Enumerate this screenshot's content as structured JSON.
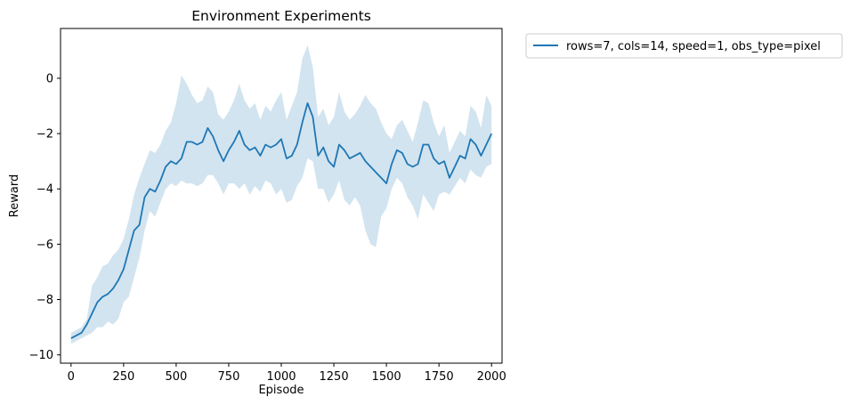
{
  "chart_data": {
    "type": "line",
    "title": "Environment Experiments",
    "xlabel": "Episode",
    "ylabel": "Reward",
    "xlim": [
      -50,
      2050
    ],
    "ylim": [
      -10.3,
      1.8
    ],
    "x_ticks": [
      0,
      250,
      500,
      750,
      1000,
      1250,
      1500,
      1750,
      2000
    ],
    "y_ticks": [
      -10,
      -8,
      -6,
      -4,
      -2,
      0
    ],
    "grid": false,
    "legend_position": "outside-top-right",
    "colors": {
      "line": "#1f77b4",
      "band": "#1f77b4"
    },
    "series": [
      {
        "name": "rows=7, cols=14, speed=1, obs_type=pixel",
        "x": [
          0,
          25,
          50,
          75,
          100,
          125,
          150,
          175,
          200,
          225,
          250,
          275,
          300,
          325,
          350,
          375,
          400,
          425,
          450,
          475,
          500,
          525,
          550,
          575,
          600,
          625,
          650,
          675,
          700,
          725,
          750,
          775,
          800,
          825,
          850,
          875,
          900,
          925,
          950,
          975,
          1000,
          1025,
          1050,
          1075,
          1100,
          1125,
          1150,
          1175,
          1200,
          1225,
          1250,
          1275,
          1300,
          1325,
          1350,
          1375,
          1400,
          1425,
          1450,
          1475,
          1500,
          1525,
          1550,
          1575,
          1600,
          1625,
          1650,
          1675,
          1700,
          1725,
          1750,
          1775,
          1800,
          1825,
          1850,
          1875,
          1900,
          1925,
          1950,
          1975,
          2000
        ],
        "y": [
          -9.4,
          -9.3,
          -9.2,
          -8.9,
          -8.5,
          -8.1,
          -7.9,
          -7.8,
          -7.6,
          -7.3,
          -6.9,
          -6.2,
          -5.5,
          -5.3,
          -4.3,
          -4.0,
          -4.1,
          -3.7,
          -3.2,
          -3.0,
          -3.1,
          -2.9,
          -2.3,
          -2.3,
          -2.4,
          -2.3,
          -1.8,
          -2.1,
          -2.6,
          -3.0,
          -2.6,
          -2.3,
          -1.9,
          -2.4,
          -2.6,
          -2.5,
          -2.8,
          -2.4,
          -2.5,
          -2.4,
          -2.2,
          -2.9,
          -2.8,
          -2.4,
          -1.6,
          -0.9,
          -1.4,
          -2.8,
          -2.5,
          -3.0,
          -3.2,
          -2.4,
          -2.6,
          -2.9,
          -2.8,
          -2.7,
          -3.0,
          -3.2,
          -3.4,
          -3.6,
          -3.8,
          -3.1,
          -2.6,
          -2.7,
          -3.1,
          -3.2,
          -3.1,
          -2.4,
          -2.4,
          -2.9,
          -3.1,
          -3.0,
          -3.6,
          -3.2,
          -2.8,
          -2.9,
          -2.2,
          -2.4,
          -2.8,
          -2.4,
          -2.0
        ],
        "lower": [
          -9.6,
          -9.5,
          -9.4,
          -9.3,
          -9.2,
          -9.0,
          -9.0,
          -8.8,
          -8.9,
          -8.7,
          -8.1,
          -7.9,
          -7.2,
          -6.5,
          -5.5,
          -4.8,
          -5.0,
          -4.5,
          -4.0,
          -3.8,
          -3.9,
          -3.7,
          -3.8,
          -3.8,
          -3.9,
          -3.8,
          -3.5,
          -3.5,
          -3.8,
          -4.2,
          -3.8,
          -3.8,
          -4.0,
          -3.8,
          -4.2,
          -3.9,
          -4.1,
          -3.7,
          -3.8,
          -4.2,
          -4.0,
          -4.5,
          -4.4,
          -3.9,
          -3.6,
          -2.9,
          -3.0,
          -4.0,
          -4.0,
          -4.5,
          -4.2,
          -3.7,
          -4.4,
          -4.6,
          -4.3,
          -4.6,
          -5.5,
          -6.0,
          -6.1,
          -5.0,
          -4.7,
          -4.0,
          -3.6,
          -3.8,
          -4.3,
          -4.6,
          -5.1,
          -4.2,
          -4.5,
          -4.8,
          -4.2,
          -4.1,
          -4.2,
          -3.9,
          -3.6,
          -3.8,
          -3.3,
          -3.5,
          -3.6,
          -3.2,
          -3.1
        ],
        "upper": [
          -9.2,
          -9.1,
          -9.0,
          -8.7,
          -7.5,
          -7.2,
          -6.8,
          -6.7,
          -6.4,
          -6.2,
          -5.8,
          -5.1,
          -4.2,
          -3.6,
          -3.1,
          -2.6,
          -2.7,
          -2.4,
          -1.9,
          -1.6,
          -0.9,
          0.1,
          -0.2,
          -0.6,
          -0.9,
          -0.8,
          -0.3,
          -0.5,
          -1.3,
          -1.5,
          -1.2,
          -0.8,
          -0.2,
          -0.8,
          -1.1,
          -0.9,
          -1.5,
          -1.0,
          -1.2,
          -0.8,
          -0.5,
          -1.5,
          -1.0,
          -0.5,
          0.7,
          1.2,
          0.4,
          -1.4,
          -1.1,
          -1.7,
          -1.4,
          -0.5,
          -1.2,
          -1.5,
          -1.3,
          -1.0,
          -0.6,
          -0.9,
          -1.1,
          -1.6,
          -2.0,
          -2.2,
          -1.7,
          -1.5,
          -1.9,
          -2.3,
          -1.6,
          -0.8,
          -0.9,
          -1.6,
          -2.1,
          -1.7,
          -2.7,
          -2.3,
          -1.9,
          -2.1,
          -1.0,
          -1.2,
          -1.8,
          -0.6,
          -1.0
        ]
      }
    ]
  }
}
